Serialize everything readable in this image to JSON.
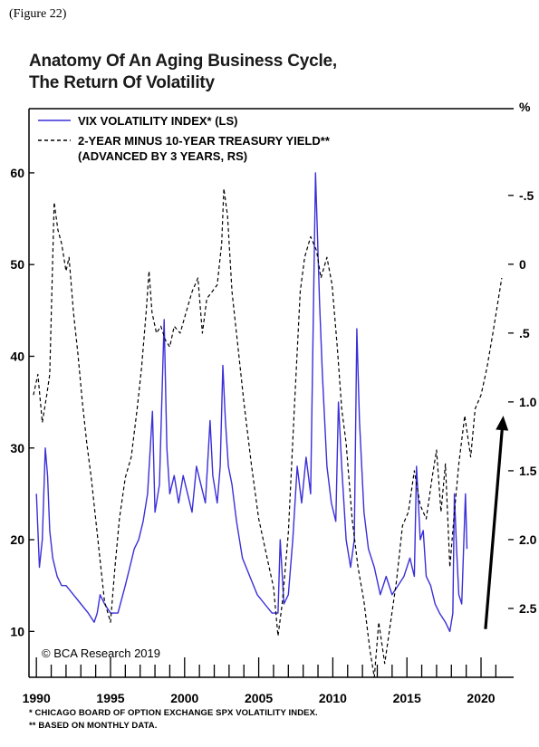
{
  "figure_label": "(Figure 22)",
  "title_line1": "Anatomy Of An Aging Business Cycle,",
  "title_line2": "The Return Of Volatility",
  "credit": "© BCA Research 2019",
  "footnotes": [
    "* CHICAGO BOARD OF OPTION EXCHANGE SPX VOLATILITY INDEX.",
    "** BASED ON MONTHLY DATA."
  ],
  "colors": {
    "vix": "#3a2fd8",
    "yield": "#000000",
    "arrow": "#000000"
  },
  "chart_data": {
    "type": "line",
    "xlim": [
      1989.5,
      2022.2
    ],
    "x_ticks": [
      1990,
      1995,
      2000,
      2005,
      2010,
      2015,
      2020
    ],
    "x_tick_labels": [
      "1990",
      "1995",
      "2000",
      "2005",
      "2010",
      "2015",
      "2020"
    ],
    "left_axis": {
      "ylim": [
        5,
        67
      ],
      "ticks": [
        10,
        20,
        30,
        40,
        50,
        60
      ],
      "tick_labels": [
        "10",
        "20",
        "30",
        "40",
        "50",
        "60"
      ]
    },
    "right_axis": {
      "unit_label": "%",
      "ylim": [
        3.0,
        -1.13
      ],
      "inverted": true,
      "ticks": [
        -0.5,
        0,
        0.5,
        1.0,
        1.5,
        2.0,
        2.5
      ],
      "tick_labels": [
        "-.5",
        "0",
        ".5",
        "1.0",
        "1.5",
        "2.0",
        "2.5"
      ]
    },
    "grid": false,
    "legend": "top-left",
    "series": [
      {
        "name": "VIX VOLATILITY INDEX* (LS)",
        "axis": "left",
        "style": "solid",
        "x": [
          1990.0,
          1990.2,
          1990.4,
          1990.6,
          1990.75,
          1990.9,
          1991.1,
          1991.4,
          1991.7,
          1992.0,
          1992.5,
          1993.0,
          1993.5,
          1993.9,
          1994.1,
          1994.3,
          1994.6,
          1995.0,
          1995.5,
          1996.0,
          1996.3,
          1996.6,
          1996.9,
          1997.2,
          1997.5,
          1997.83,
          1998.0,
          1998.3,
          1998.62,
          1998.8,
          1999.0,
          1999.3,
          1999.6,
          1999.9,
          2000.2,
          2000.5,
          2000.8,
          2001.1,
          2001.4,
          2001.72,
          2001.9,
          2002.2,
          2002.4,
          2002.58,
          2002.75,
          2002.95,
          2003.2,
          2003.5,
          2003.9,
          2004.4,
          2004.9,
          2005.4,
          2005.9,
          2006.3,
          2006.45,
          2006.7,
          2007.0,
          2007.3,
          2007.6,
          2007.9,
          2008.2,
          2008.5,
          2008.83,
          2008.95,
          2009.1,
          2009.3,
          2009.6,
          2009.9,
          2010.2,
          2010.38,
          2010.6,
          2010.9,
          2011.2,
          2011.45,
          2011.62,
          2011.8,
          2012.1,
          2012.4,
          2012.8,
          2013.2,
          2013.6,
          2014.0,
          2014.4,
          2014.8,
          2015.2,
          2015.5,
          2015.65,
          2015.9,
          2016.1,
          2016.3,
          2016.6,
          2016.9,
          2017.2,
          2017.6,
          2017.9,
          2018.1,
          2018.2,
          2018.35,
          2018.5,
          2018.7,
          2018.95,
          2019.05
        ],
        "values": [
          25,
          17,
          20,
          30,
          27,
          21,
          18,
          16,
          15,
          15,
          14,
          13,
          12,
          11,
          12,
          14,
          13,
          12,
          12,
          15,
          17,
          19,
          20,
          22,
          25,
          34,
          23,
          26,
          44,
          30,
          25,
          27,
          24,
          27,
          25,
          23,
          28,
          26,
          24,
          33,
          27,
          24,
          28,
          39,
          33,
          28,
          26,
          22,
          18,
          16,
          14,
          13,
          12,
          12,
          20,
          13,
          14,
          20,
          28,
          24,
          29,
          25,
          60,
          54,
          46,
          38,
          28,
          24,
          22,
          35,
          28,
          20,
          17,
          20,
          43,
          33,
          23,
          19,
          17,
          14,
          16,
          14,
          15,
          16,
          18,
          16,
          28,
          20,
          21,
          16,
          15,
          13,
          12,
          11,
          10,
          12,
          25,
          19,
          14,
          13,
          25,
          19
        ]
      },
      {
        "name": "2-YEAR MINUS 10-YEAR TREASURY YIELD** (ADVANCED BY 3 YEARS, RS)",
        "axis": "right",
        "style": "dashed",
        "x": [
          1989.8,
          1990.1,
          1990.4,
          1990.7,
          1990.9,
          1991.2,
          1991.45,
          1991.7,
          1992.0,
          1992.2,
          1992.5,
          1992.8,
          1993.1,
          1993.4,
          1993.7,
          1994.0,
          1994.3,
          1994.6,
          1995.0,
          1995.3,
          1995.6,
          1996.0,
          1996.4,
          1996.8,
          1997.1,
          1997.4,
          1997.6,
          1997.8,
          1998.1,
          1998.4,
          1998.7,
          1999.0,
          1999.3,
          1999.7,
          2000.1,
          2000.5,
          2000.9,
          2001.2,
          2001.5,
          2001.85,
          2002.2,
          2002.5,
          2002.65,
          2002.9,
          2003.2,
          2003.6,
          2004.0,
          2004.5,
          2005.0,
          2005.5,
          2006.0,
          2006.3,
          2006.6,
          2007.0,
          2007.4,
          2007.8,
          2008.1,
          2008.5,
          2008.9,
          2009.2,
          2009.6,
          2009.95,
          2010.3,
          2010.6,
          2010.9,
          2011.3,
          2011.7,
          2012.1,
          2012.5,
          2012.8,
          2013.1,
          2013.5,
          2013.9,
          2014.3,
          2014.7,
          2015.1,
          2015.5,
          2015.9,
          2016.3,
          2016.7,
          2017.0,
          2017.3,
          2017.6,
          2017.9,
          2018.2,
          2018.5,
          2018.9,
          2019.3,
          2019.6,
          2020.0,
          2020.4,
          2020.8,
          2021.1,
          2021.4
        ],
        "values": [
          0.95,
          0.8,
          1.15,
          0.95,
          0.8,
          -0.45,
          -0.25,
          -0.15,
          0.05,
          -0.05,
          0.35,
          0.65,
          1.0,
          1.3,
          1.55,
          1.85,
          2.15,
          2.45,
          2.6,
          2.2,
          1.85,
          1.55,
          1.4,
          1.05,
          0.75,
          0.35,
          0.05,
          0.35,
          0.5,
          0.45,
          0.55,
          0.6,
          0.45,
          0.5,
          0.35,
          0.2,
          0.1,
          0.5,
          0.25,
          0.2,
          0.15,
          -0.15,
          -0.55,
          -0.35,
          0.2,
          0.6,
          1.0,
          1.45,
          1.85,
          2.1,
          2.35,
          2.7,
          2.45,
          1.95,
          1.05,
          0.2,
          -0.05,
          -0.2,
          -0.1,
          0.1,
          -0.05,
          0.15,
          0.6,
          1.05,
          1.3,
          1.85,
          2.2,
          2.45,
          2.8,
          3.0,
          2.6,
          2.9,
          2.6,
          2.3,
          1.9,
          1.8,
          1.5,
          1.75,
          1.85,
          1.55,
          1.35,
          1.8,
          1.45,
          2.2,
          1.8,
          1.45,
          1.1,
          1.4,
          1.05,
          0.95,
          0.75,
          0.5,
          0.3,
          0.1
        ]
      }
    ],
    "annotations": [
      {
        "type": "arrow",
        "from": {
          "x": 2020.3,
          "y_right": 2.65
        },
        "to": {
          "x": 2021.5,
          "y_right": 1.1
        }
      }
    ]
  }
}
